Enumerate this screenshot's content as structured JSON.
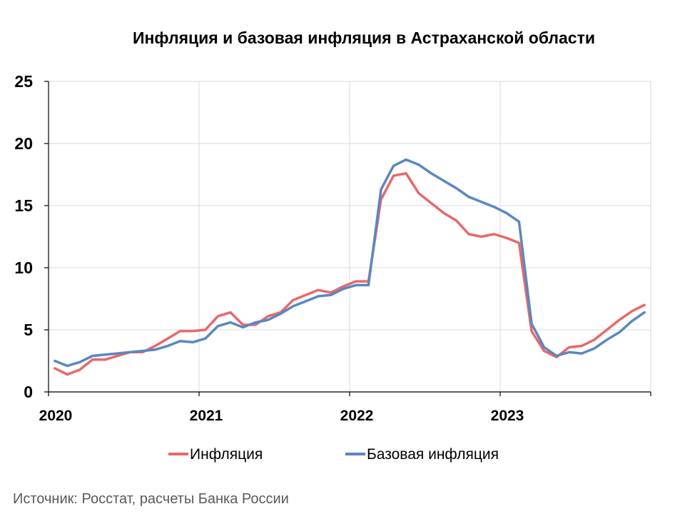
{
  "chart_data": {
    "type": "line",
    "title": "Инфляция и базовая инфляция в Астраханской области",
    "xlabel": "",
    "ylabel": "",
    "ylim": [
      0,
      25
    ],
    "yticks": [
      0,
      5,
      10,
      15,
      20,
      25
    ],
    "xtick_labels": [
      "2020",
      "2021",
      "2022",
      "2023"
    ],
    "grid": true,
    "legend_position": "bottom",
    "x": [
      "2020-01",
      "2020-02",
      "2020-03",
      "2020-04",
      "2020-05",
      "2020-06",
      "2020-07",
      "2020-08",
      "2020-09",
      "2020-10",
      "2020-11",
      "2020-12",
      "2021-01",
      "2021-02",
      "2021-03",
      "2021-04",
      "2021-05",
      "2021-06",
      "2021-07",
      "2021-08",
      "2021-09",
      "2021-10",
      "2021-11",
      "2021-12",
      "2022-01",
      "2022-02",
      "2022-03",
      "2022-04",
      "2022-05",
      "2022-06",
      "2022-07",
      "2022-08",
      "2022-09",
      "2022-10",
      "2022-11",
      "2022-12",
      "2023-01",
      "2023-02",
      "2023-03",
      "2023-04",
      "2023-05",
      "2023-06",
      "2023-07",
      "2023-08",
      "2023-09",
      "2023-10",
      "2023-11",
      "2023-12"
    ],
    "series": [
      {
        "name": "Инфляция",
        "color": "#e8686a",
        "values": [
          1.9,
          1.4,
          1.8,
          2.6,
          2.6,
          2.9,
          3.2,
          3.2,
          3.7,
          4.3,
          4.9,
          4.9,
          5.0,
          6.1,
          6.4,
          5.4,
          5.4,
          6.1,
          6.4,
          7.4,
          7.8,
          8.2,
          8.0,
          8.5,
          8.9,
          8.9,
          15.5,
          17.4,
          17.6,
          16.0,
          15.2,
          14.4,
          13.8,
          12.7,
          12.5,
          12.7,
          12.4,
          12.0,
          4.9,
          3.3,
          2.8,
          3.6,
          3.7,
          4.2,
          5.0,
          5.8,
          6.5,
          7.0
        ]
      },
      {
        "name": "Базовая инфляция",
        "color": "#5b87bf",
        "values": [
          2.5,
          2.1,
          2.4,
          2.9,
          3.0,
          3.1,
          3.2,
          3.3,
          3.4,
          3.7,
          4.1,
          4.0,
          4.3,
          5.3,
          5.6,
          5.2,
          5.6,
          5.8,
          6.3,
          6.9,
          7.3,
          7.7,
          7.8,
          8.3,
          8.6,
          8.6,
          16.3,
          18.2,
          18.7,
          18.3,
          17.6,
          17.0,
          16.4,
          15.7,
          15.3,
          14.9,
          14.4,
          13.7,
          5.5,
          3.6,
          2.9,
          3.2,
          3.1,
          3.5,
          4.2,
          4.8,
          5.7,
          6.4
        ]
      }
    ]
  },
  "source_text": "Источник: Росстат, расчеты Банка России"
}
